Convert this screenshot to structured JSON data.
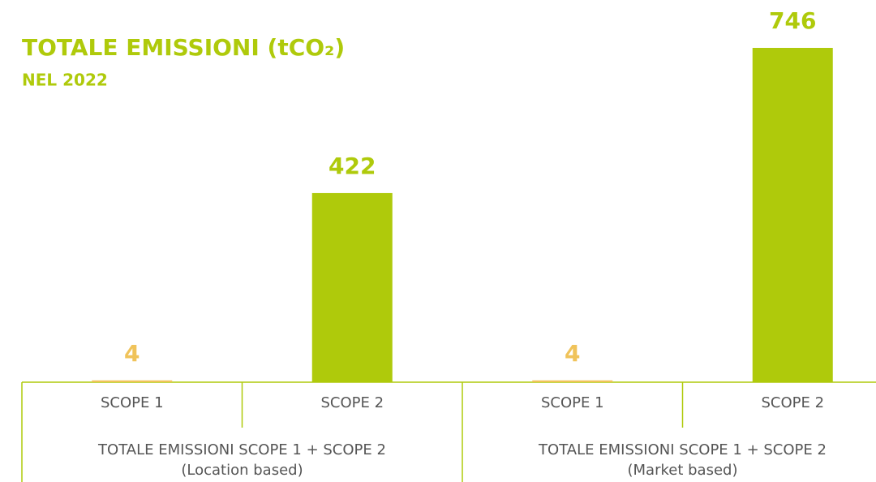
{
  "chart_data": {
    "type": "bar",
    "title": "TOTALE EMISSIONI (tCO₂)",
    "subtitle": "NEL 2022",
    "categories": [
      "SCOPE 1",
      "SCOPE 2",
      "SCOPE 1",
      "SCOPE 2"
    ],
    "values": [
      4,
      422,
      4,
      746
    ],
    "colors": [
      "#f0c35a",
      "#afca0b",
      "#f0c35a",
      "#afca0b"
    ],
    "groups": [
      {
        "label": "TOTALE EMISSIONI SCOPE 1 + SCOPE 2",
        "sublabel": "(Location based)"
      },
      {
        "label": "TOTALE EMISSIONI SCOPE 1 + SCOPE 2",
        "sublabel": "(Market based)"
      }
    ]
  }
}
